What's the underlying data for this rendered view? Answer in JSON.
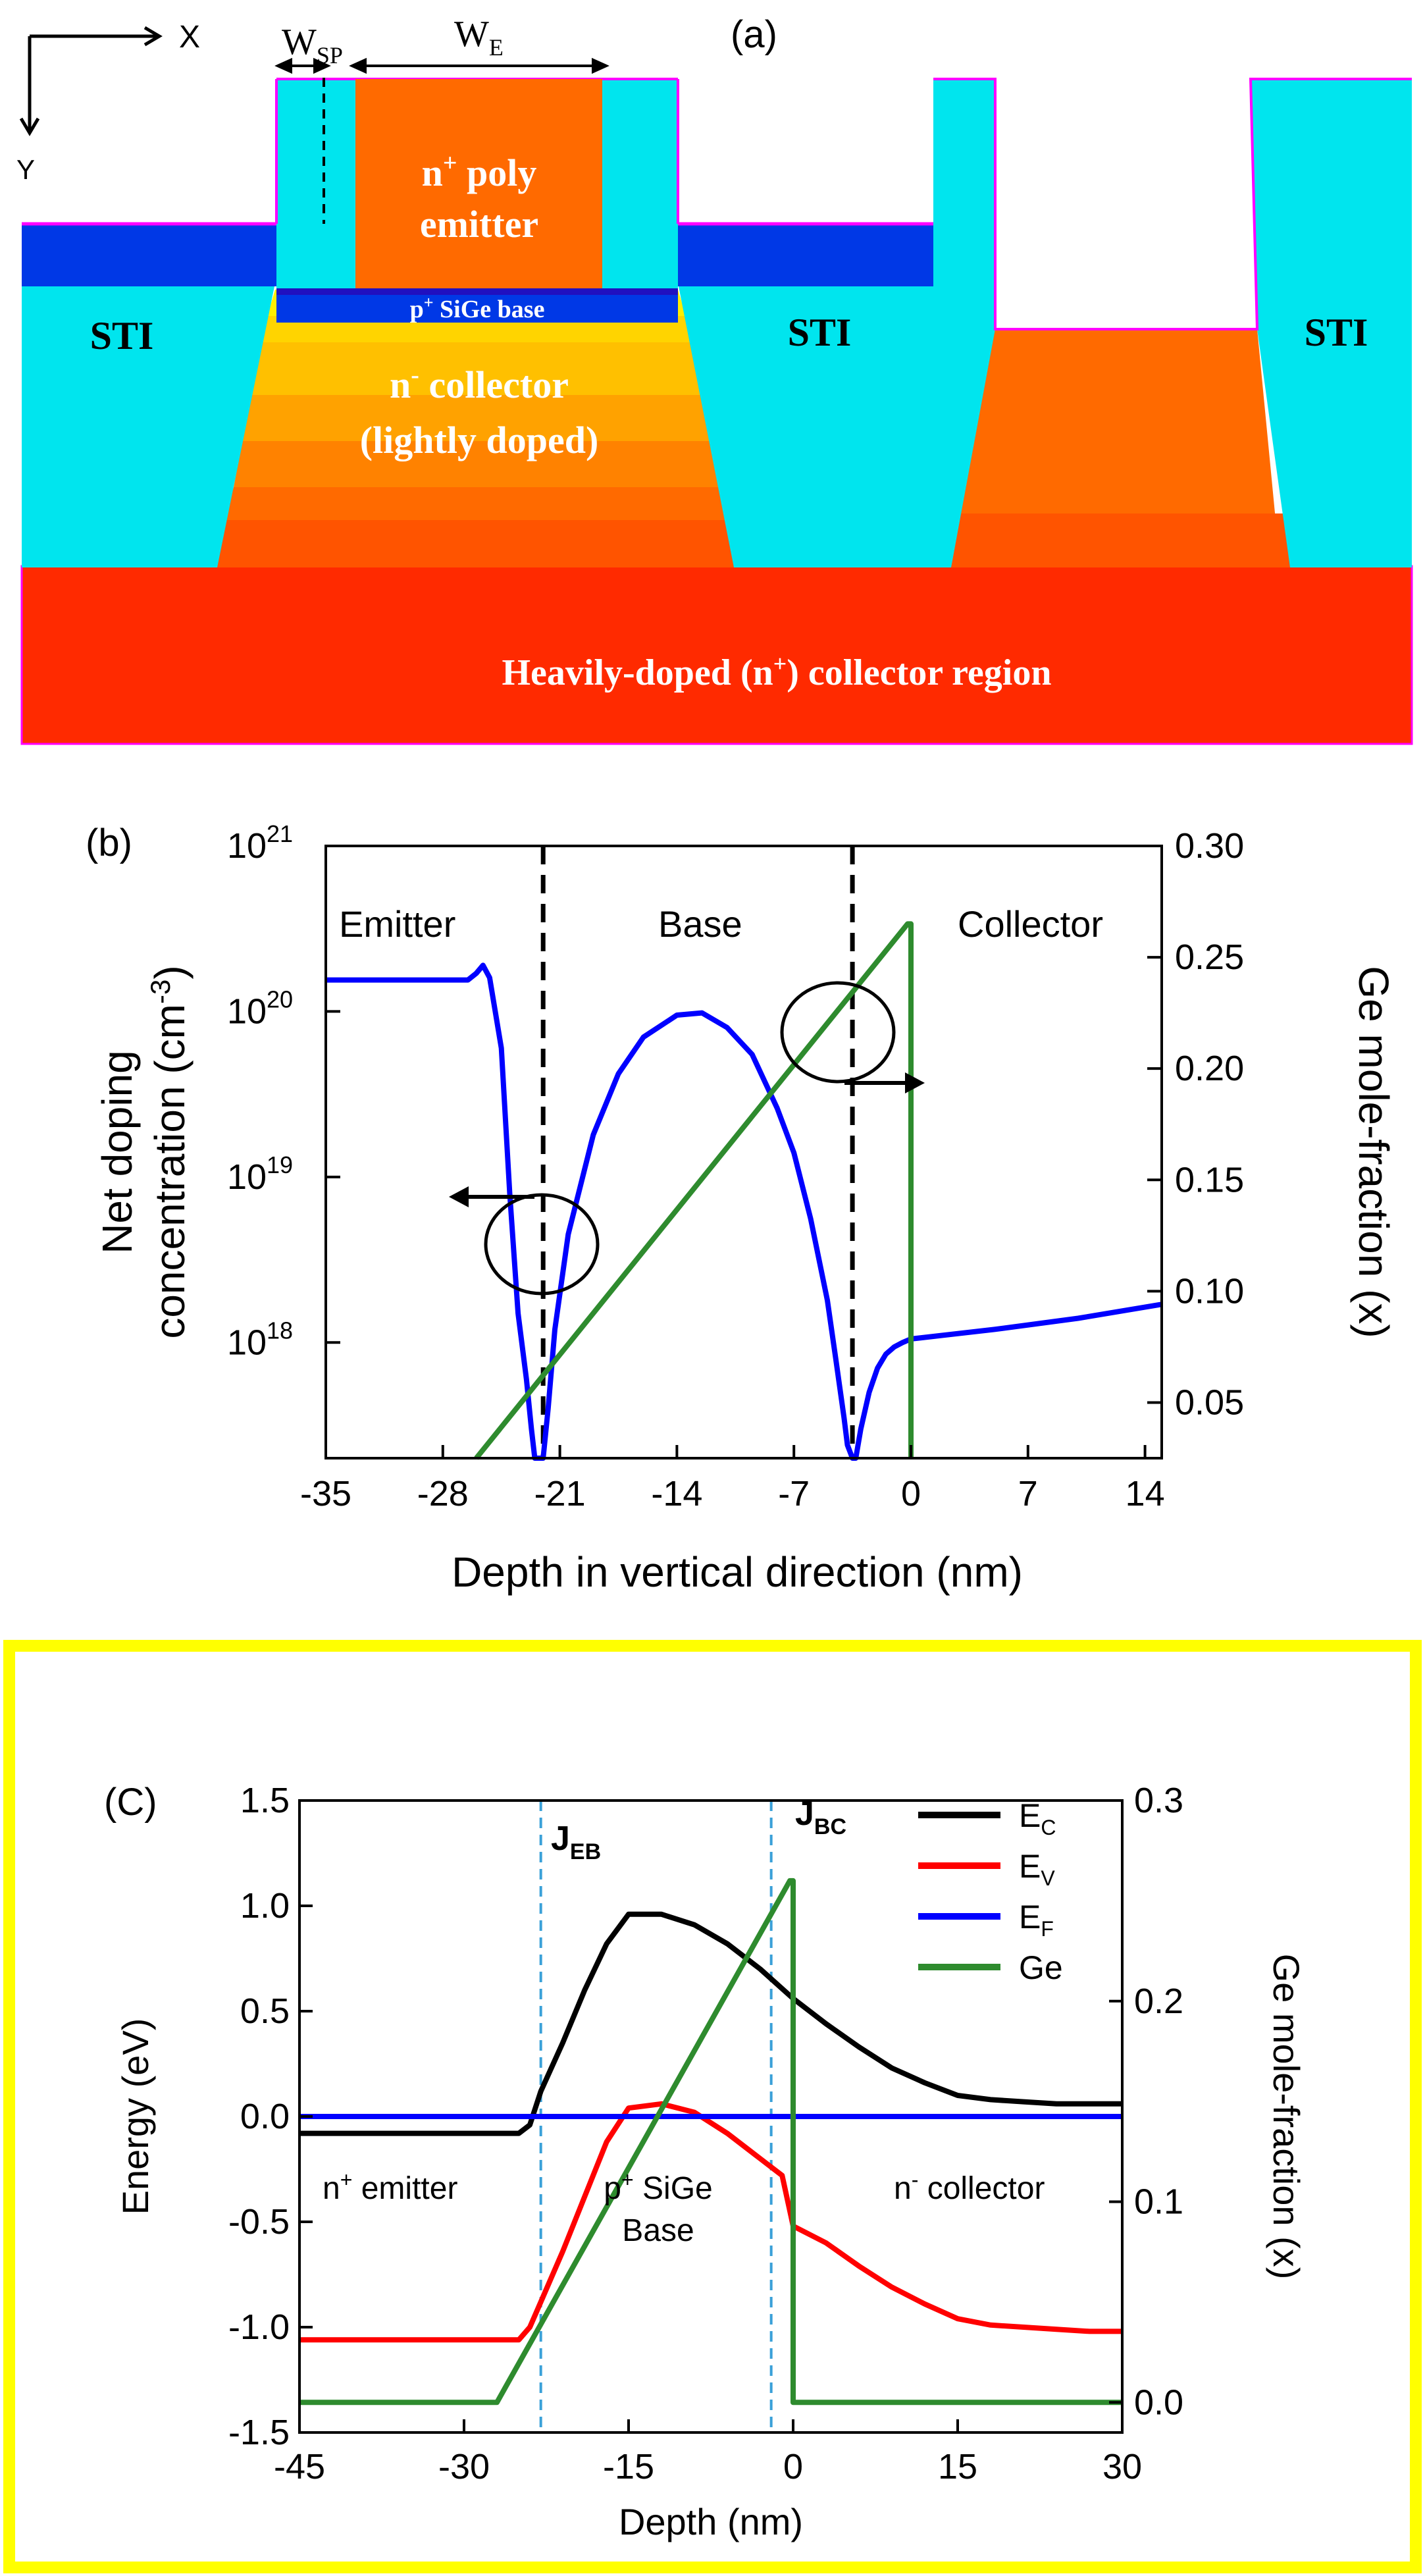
{
  "panel_a": {
    "label": "(a)",
    "axis_x": "X",
    "axis_y": "Y",
    "w_sp": "W",
    "w_sp_sub": "SP",
    "w_e": "W",
    "w_e_sub": "E",
    "emitter_l1_pre": "n",
    "emitter_l1_sup": "+",
    "emitter_l1_post": " poly",
    "emitter_l2": "emitter",
    "base_pre": "p",
    "base_sup": "+",
    "base_post": " SiGe base",
    "coll_pre": "n",
    "coll_sup": "-",
    "coll_post": " collector",
    "coll_l2": "(lightly doped)",
    "sti": "STI",
    "heavy_pre": "Heavily-doped (n",
    "heavy_sup": "+",
    "heavy_post": ") collector region",
    "colors": {
      "cyan": "#00e5ee",
      "blue": "#0038e6",
      "magenta": "#ff00ff",
      "orange": "#ff6a00",
      "red": "#ff2a00"
    }
  },
  "panel_b": {
    "label": "(b)",
    "region_emitter": "Emitter",
    "region_base": "Base",
    "region_collector": "Collector",
    "ylabel_l1": "Net doping",
    "ylabel_l2_pre": "concentration (cm",
    "ylabel_l2_sup": "-3",
    "ylabel_l2_post": ")",
    "y2label": "Ge mole-fraction (x)",
    "xlabel": "Depth in vertical direction (nm)",
    "y_ticks": [
      {
        "base": "10",
        "exp": "18"
      },
      {
        "base": "10",
        "exp": "19"
      },
      {
        "base": "10",
        "exp": "20"
      },
      {
        "base": "10",
        "exp": "21"
      }
    ],
    "x_ticks": [
      "-35",
      "-28",
      "-21",
      "-14",
      "-7",
      "0",
      "7",
      "14"
    ],
    "y2_ticks": [
      "0.05",
      "0.10",
      "0.15",
      "0.20",
      "0.25",
      "0.30"
    ]
  },
  "panel_c": {
    "label": "(C)",
    "ylabel": "Energy (eV)",
    "y2label": "Ge mole-fraction (x)",
    "xlabel": "Depth (nm)",
    "y_ticks": [
      "1.5",
      "1.0",
      "0.5",
      "0.0",
      "-0.5",
      "-1.0",
      "-1.5"
    ],
    "x_ticks": [
      "-45",
      "-30",
      "-15",
      "0",
      "15",
      "30"
    ],
    "y2_ticks": [
      "0.3",
      "0.2",
      "0.1",
      "0.0"
    ],
    "jeb": "J",
    "jeb_sub": "EB",
    "jbc": "J",
    "jbc_sub": "BC",
    "legend": [
      {
        "name": "E",
        "sub": "C",
        "color": "#000000"
      },
      {
        "name": "E",
        "sub": "V",
        "color": "#ff0000"
      },
      {
        "name": "E",
        "sub": "F",
        "color": "#0000ff"
      },
      {
        "name": "Ge",
        "sub": "",
        "color": "#2e8b2e"
      }
    ],
    "emit_pre": "n",
    "emit_sup": "+",
    "emit_post": "  emitter",
    "base_l1_pre": "p",
    "base_l1_sup": "+",
    "base_l1_post": "  SiGe",
    "base_l2": "Base",
    "coll_pre": "n",
    "coll_sup": "-",
    "coll_post": "  collector",
    "border_color": "#ffff00"
  },
  "chart_data": [
    {
      "type": "line",
      "title": "(b)",
      "xlabel": "Depth in vertical direction (nm)",
      "ylabel": "Net doping concentration (cm-3)",
      "y2label": "Ge mole-fraction (x)",
      "xlim": [
        -35,
        15
      ],
      "ylim": [
        2e+17,
        1e+21
      ],
      "y2lim": [
        0.025,
        0.3
      ],
      "yscale": "log",
      "vlines": [
        -22,
        -3.5
      ],
      "series": [
        {
          "name": "Net doping",
          "axis": "left",
          "color": "#0000ff",
          "x": [
            -35,
            -26.5,
            -26,
            -25.6,
            -25.2,
            -24.5,
            -24,
            -23.5,
            -23,
            -22.7,
            -22.5,
            -22.2,
            -22,
            -21.7,
            -21.3,
            -20.5,
            -19,
            -17.5,
            -16,
            -14,
            -12.5,
            -11,
            -9.5,
            -8,
            -7,
            -6,
            -5,
            -4.5,
            -4,
            -3.8,
            -3.5,
            -3.3,
            -3,
            -2.5,
            -2,
            -1.5,
            -1,
            -0.5,
            0,
            5,
            10,
            15
          ],
          "y": [
            1.55e+20,
            1.55e+20,
            1.7e+20,
            1.9e+20,
            1.6e+20,
            6e+19,
            8e+18,
            1.5e+18,
            6e+17,
            3e+17,
            2e+17,
            2e+17,
            2e+17,
            4e+17,
            1.2e+18,
            4.5e+18,
            1.8e+19,
            4.2e+19,
            7e+19,
            9.5e+19,
            9.8e+19,
            8e+19,
            5.5e+19,
            2.6e+19,
            1.4e+19,
            5.6e+18,
            1.8e+18,
            8e+17,
            3.5e+17,
            2.4e+17,
            2e+17,
            2e+17,
            3e+17,
            5e+17,
            7e+17,
            8.5e+17,
            9.4e+17,
            1e+18,
            1.05e+18,
            1.2e+18,
            1.4e+18,
            1.7e+18
          ]
        },
        {
          "name": "Ge",
          "axis": "right",
          "color": "#2e8b2e",
          "x": [
            -26,
            -0.2,
            0,
            0
          ],
          "y": [
            0.025,
            0.265,
            0.265,
            0.025
          ]
        }
      ]
    },
    {
      "type": "line",
      "title": "(C)",
      "xlabel": "Depth (nm)",
      "ylabel": "Energy (eV)",
      "y2label": "Ge mole-fraction (x)",
      "xlim": [
        -45,
        30
      ],
      "ylim": [
        -1.5,
        1.5
      ],
      "y2lim": [
        -0.015,
        0.3
      ],
      "vlines": [
        -23,
        -2
      ],
      "series": [
        {
          "name": "E_C",
          "axis": "left",
          "color": "#000000",
          "x": [
            -45,
            -25,
            -24,
            -23,
            -21,
            -19,
            -17,
            -15,
            -12,
            -9,
            -6,
            -3,
            0,
            3,
            6,
            9,
            12,
            15,
            18,
            21,
            24,
            27,
            30
          ],
          "y": [
            -0.08,
            -0.08,
            -0.04,
            0.12,
            0.35,
            0.6,
            0.82,
            0.96,
            0.96,
            0.91,
            0.82,
            0.7,
            0.56,
            0.44,
            0.33,
            0.23,
            0.16,
            0.1,
            0.08,
            0.07,
            0.06,
            0.06,
            0.06
          ]
        },
        {
          "name": "E_V",
          "axis": "left",
          "color": "#ff0000",
          "x": [
            -45,
            -25,
            -24,
            -23,
            -21,
            -19,
            -17,
            -15,
            -12,
            -9,
            -6,
            -3,
            -1,
            0,
            3,
            6,
            9,
            12,
            15,
            18,
            21,
            24,
            27,
            30
          ],
          "y": [
            -1.06,
            -1.06,
            -1.0,
            -0.88,
            -0.64,
            -0.38,
            -0.12,
            0.04,
            0.06,
            0.02,
            -0.08,
            -0.2,
            -0.28,
            -0.52,
            -0.6,
            -0.71,
            -0.81,
            -0.89,
            -0.96,
            -0.99,
            -1.0,
            -1.01,
            -1.02,
            -1.02
          ]
        },
        {
          "name": "E_F",
          "axis": "left",
          "color": "#0000ff",
          "x": [
            -45,
            30
          ],
          "y": [
            0.0,
            0.0
          ]
        },
        {
          "name": "Ge",
          "axis": "right",
          "color": "#2e8b2e",
          "x": [
            -45,
            -27,
            -0.3,
            0,
            0,
            30
          ],
          "y": [
            0.0,
            0.0,
            0.26,
            0.26,
            0.0,
            0.0
          ]
        }
      ]
    }
  ]
}
